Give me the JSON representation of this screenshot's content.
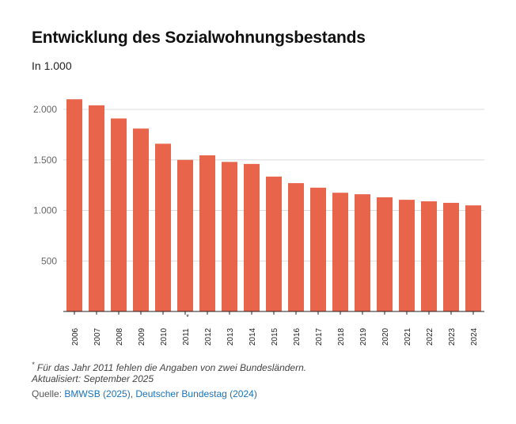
{
  "title": "Entwicklung des Sozialwohnungsbestands",
  "subtitle": "In 1.000",
  "footnote": {
    "marker": "*",
    "text": "Für das Jahr 2011 fehlen die Angaben von zwei Bundesländern."
  },
  "updated": "Aktualisiert: September 2025",
  "source": {
    "label": "Quelle: ",
    "links": [
      "BMWSB (2025)",
      "Deutscher Bundestag (2024)"
    ],
    "separator": ", "
  },
  "chart_data": {
    "type": "bar",
    "categories": [
      "2006",
      "2007",
      "2008",
      "2009",
      "2010",
      "2011",
      "2012",
      "2013",
      "2014",
      "2015",
      "2016",
      "2017",
      "2018",
      "2019",
      "2020",
      "2021",
      "2022",
      "2023",
      "2024"
    ],
    "category_markers": {
      "2011": "*"
    },
    "values": [
      2100,
      2040,
      1910,
      1810,
      1660,
      1500,
      1545,
      1480,
      1460,
      1335,
      1270,
      1225,
      1175,
      1160,
      1130,
      1105,
      1090,
      1075,
      1050
    ],
    "yticks": [
      500,
      1000,
      1500,
      2000
    ],
    "ytick_labels": [
      "500",
      "1.000",
      "1.500",
      "2.000"
    ],
    "ylim": [
      0,
      2200
    ],
    "grid": true,
    "bar_color": "#e8654c"
  }
}
